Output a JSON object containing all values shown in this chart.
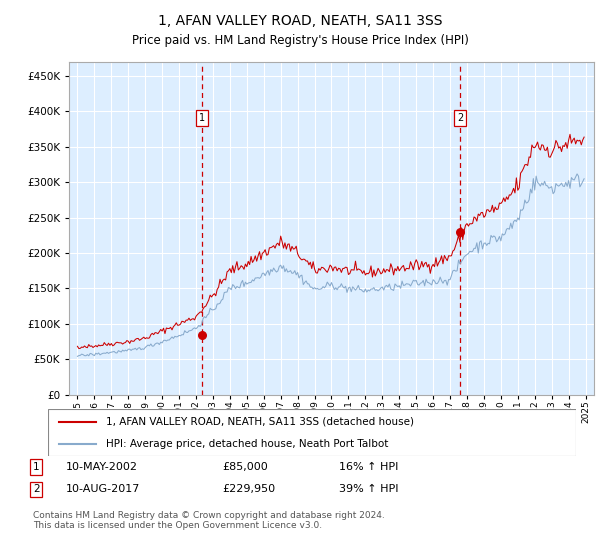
{
  "title": "1, AFAN VALLEY ROAD, NEATH, SA11 3SS",
  "subtitle": "Price paid vs. HM Land Registry's House Price Index (HPI)",
  "ytick_vals": [
    0,
    50000,
    100000,
    150000,
    200000,
    250000,
    300000,
    350000,
    400000,
    450000
  ],
  "ylim": [
    0,
    470000
  ],
  "xlim_start": 1994.5,
  "xlim_end": 2025.5,
  "background_color": "#ddeeff",
  "grid_color": "#ffffff",
  "red_line_color": "#cc0000",
  "blue_line_color": "#88aacc",
  "marker_color": "#cc0000",
  "dashed_line_color": "#cc0000",
  "legend_label_red": "1, AFAN VALLEY ROAD, NEATH, SA11 3SS (detached house)",
  "legend_label_blue": "HPI: Average price, detached house, Neath Port Talbot",
  "transaction1_x": 2002.36,
  "transaction1_y": 85000,
  "transaction2_x": 2017.61,
  "transaction2_y": 229950,
  "footer_text": "Contains HM Land Registry data © Crown copyright and database right 2024.\nThis data is licensed under the Open Government Licence v3.0."
}
